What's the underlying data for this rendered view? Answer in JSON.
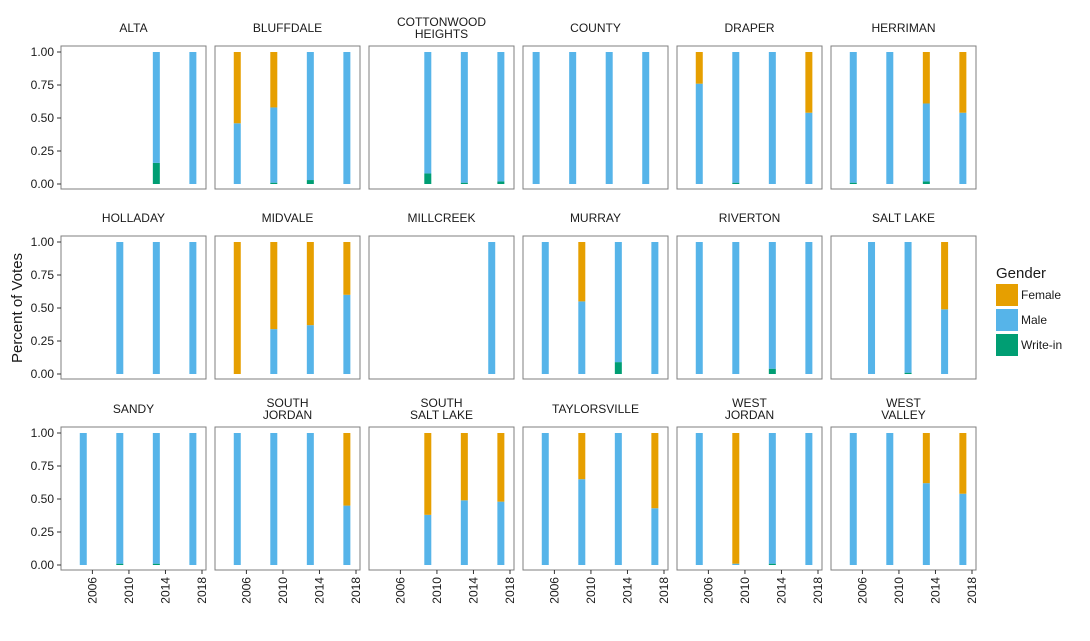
{
  "chart_data": {
    "type": "bar",
    "stacked": true,
    "ylabel": "Percent of Votes",
    "ylim": [
      0,
      1
    ],
    "yticks": [
      "0.00",
      "0.25",
      "0.50",
      "0.75",
      "1.00"
    ],
    "xticks": [
      "2006",
      "2010",
      "2014",
      "2018"
    ],
    "xlim": [
      2003,
      2018
    ],
    "grid": false,
    "legend": {
      "title": "Gender",
      "position": "right",
      "entries": [
        {
          "name": "Female",
          "color": "#E69F00"
        },
        {
          "name": "Male",
          "color": "#56B4E9"
        },
        {
          "name": "Write-in",
          "color": "#009E73"
        }
      ]
    },
    "facets": [
      {
        "title": [
          "ALTA"
        ],
        "bars": [
          {
            "x": 2013,
            "writein": 0.16,
            "male": 0.84,
            "female": 0
          },
          {
            "x": 2017,
            "writein": 0,
            "male": 1.0,
            "female": 0
          }
        ]
      },
      {
        "title": [
          "BLUFFDALE"
        ],
        "bars": [
          {
            "x": 2005,
            "writein": 0,
            "male": 0.46,
            "female": 0.54
          },
          {
            "x": 2009,
            "writein": 0.01,
            "male": 0.57,
            "female": 0.42
          },
          {
            "x": 2013,
            "writein": 0.03,
            "male": 0.97,
            "female": 0
          },
          {
            "x": 2017,
            "writein": 0,
            "male": 1.0,
            "female": 0
          }
        ]
      },
      {
        "title": [
          "COTTONWOOD",
          "HEIGHTS"
        ],
        "bars": [
          {
            "x": 2009,
            "writein": 0.08,
            "male": 0.92,
            "female": 0
          },
          {
            "x": 2013,
            "writein": 0.01,
            "male": 0.99,
            "female": 0
          },
          {
            "x": 2017,
            "writein": 0.02,
            "male": 0.98,
            "female": 0
          }
        ]
      },
      {
        "title": [
          "COUNTY"
        ],
        "bars": [
          {
            "x": 2004,
            "writein": 0,
            "male": 1.0,
            "female": 0
          },
          {
            "x": 2008,
            "writein": 0,
            "male": 1.0,
            "female": 0
          },
          {
            "x": 2012,
            "writein": 0,
            "male": 1.0,
            "female": 0
          },
          {
            "x": 2016,
            "writein": 0,
            "male": 1.0,
            "female": 0
          }
        ]
      },
      {
        "title": [
          "DRAPER"
        ],
        "bars": [
          {
            "x": 2005,
            "writein": 0,
            "male": 0.76,
            "female": 0.24
          },
          {
            "x": 2009,
            "writein": 0.01,
            "male": 0.99,
            "female": 0
          },
          {
            "x": 2013,
            "writein": 0,
            "male": 1.0,
            "female": 0
          },
          {
            "x": 2017,
            "writein": 0,
            "male": 0.54,
            "female": 0.46
          }
        ]
      },
      {
        "title": [
          "HERRIMAN"
        ],
        "bars": [
          {
            "x": 2005,
            "writein": 0.01,
            "male": 0.99,
            "female": 0
          },
          {
            "x": 2009,
            "writein": 0,
            "male": 1.0,
            "female": 0
          },
          {
            "x": 2013,
            "writein": 0.02,
            "male": 0.59,
            "female": 0.39
          },
          {
            "x": 2017,
            "writein": 0,
            "male": 0.54,
            "female": 0.46
          }
        ]
      },
      {
        "title": [
          "HOLLADAY"
        ],
        "bars": [
          {
            "x": 2009,
            "writein": 0,
            "male": 1.0,
            "female": 0
          },
          {
            "x": 2013,
            "writein": 0,
            "male": 1.0,
            "female": 0
          },
          {
            "x": 2017,
            "writein": 0,
            "male": 1.0,
            "female": 0
          }
        ]
      },
      {
        "title": [
          "MIDVALE"
        ],
        "bars": [
          {
            "x": 2005,
            "writein": 0,
            "male": 0,
            "female": 1.0
          },
          {
            "x": 2009,
            "writein": 0,
            "male": 0.34,
            "female": 0.66
          },
          {
            "x": 2013,
            "writein": 0,
            "male": 0.37,
            "female": 0.63
          },
          {
            "x": 2017,
            "writein": 0,
            "male": 0.6,
            "female": 0.4
          }
        ]
      },
      {
        "title": [
          "MILLCREEK"
        ],
        "bars": [
          {
            "x": 2016,
            "writein": 0,
            "male": 1.0,
            "female": 0
          }
        ]
      },
      {
        "title": [
          "MURRAY"
        ],
        "bars": [
          {
            "x": 2005,
            "writein": 0,
            "male": 1.0,
            "female": 0
          },
          {
            "x": 2009,
            "writein": 0,
            "male": 0.55,
            "female": 0.45
          },
          {
            "x": 2013,
            "writein": 0.09,
            "male": 0.91,
            "female": 0
          },
          {
            "x": 2017,
            "writein": 0,
            "male": 1.0,
            "female": 0
          }
        ]
      },
      {
        "title": [
          "RIVERTON"
        ],
        "bars": [
          {
            "x": 2005,
            "writein": 0,
            "male": 1.0,
            "female": 0
          },
          {
            "x": 2009,
            "writein": 0,
            "male": 1.0,
            "female": 0
          },
          {
            "x": 2013,
            "writein": 0.04,
            "male": 0.96,
            "female": 0
          },
          {
            "x": 2017,
            "writein": 0,
            "male": 1.0,
            "female": 0
          }
        ]
      },
      {
        "title": [
          "SALT LAKE"
        ],
        "bars": [
          {
            "x": 2007,
            "writein": 0,
            "male": 1.0,
            "female": 0
          },
          {
            "x": 2011,
            "writein": 0.01,
            "male": 0.99,
            "female": 0
          },
          {
            "x": 2015,
            "writein": 0,
            "male": 0.49,
            "female": 0.51
          }
        ]
      },
      {
        "title": [
          "SANDY"
        ],
        "bars": [
          {
            "x": 2005,
            "writein": 0,
            "male": 1.0,
            "female": 0
          },
          {
            "x": 2009,
            "writein": 0.01,
            "male": 0.99,
            "female": 0
          },
          {
            "x": 2013,
            "writein": 0.01,
            "male": 0.99,
            "female": 0
          },
          {
            "x": 2017,
            "writein": 0,
            "male": 1.0,
            "female": 0
          }
        ]
      },
      {
        "title": [
          "SOUTH",
          "JORDAN"
        ],
        "bars": [
          {
            "x": 2005,
            "writein": 0,
            "male": 1.0,
            "female": 0
          },
          {
            "x": 2009,
            "writein": 0,
            "male": 1.0,
            "female": 0
          },
          {
            "x": 2013,
            "writein": 0,
            "male": 1.0,
            "female": 0
          },
          {
            "x": 2017,
            "writein": 0,
            "male": 0.45,
            "female": 0.55
          }
        ]
      },
      {
        "title": [
          "SOUTH",
          "SALT LAKE"
        ],
        "bars": [
          {
            "x": 2009,
            "writein": 0,
            "male": 0.38,
            "female": 0.62
          },
          {
            "x": 2013,
            "writein": 0,
            "male": 0.49,
            "female": 0.51
          },
          {
            "x": 2017,
            "writein": 0,
            "male": 0.48,
            "female": 0.52
          }
        ]
      },
      {
        "title": [
          "TAYLORSVILLE"
        ],
        "bars": [
          {
            "x": 2005,
            "writein": 0,
            "male": 1.0,
            "female": 0
          },
          {
            "x": 2009,
            "writein": 0,
            "male": 0.65,
            "female": 0.35
          },
          {
            "x": 2013,
            "writein": 0,
            "male": 1.0,
            "female": 0
          },
          {
            "x": 2017,
            "writein": 0,
            "male": 0.43,
            "female": 0.57
          }
        ]
      },
      {
        "title": [
          "WEST",
          "JORDAN"
        ],
        "bars": [
          {
            "x": 2005,
            "writein": 0,
            "male": 1.0,
            "female": 0
          },
          {
            "x": 2009,
            "writein": 0,
            "male": 0.01,
            "female": 0.99
          },
          {
            "x": 2013,
            "writein": 0.01,
            "male": 0.99,
            "female": 0
          },
          {
            "x": 2017,
            "writein": 0,
            "male": 1.0,
            "female": 0
          }
        ]
      },
      {
        "title": [
          "WEST",
          "VALLEY"
        ],
        "bars": [
          {
            "x": 2005,
            "writein": 0,
            "male": 1.0,
            "female": 0
          },
          {
            "x": 2009,
            "writein": 0,
            "male": 1.0,
            "female": 0
          },
          {
            "x": 2013,
            "writein": 0,
            "male": 0.62,
            "female": 0.38
          },
          {
            "x": 2017,
            "writein": 0,
            "male": 0.54,
            "female": 0.46
          }
        ]
      }
    ]
  }
}
